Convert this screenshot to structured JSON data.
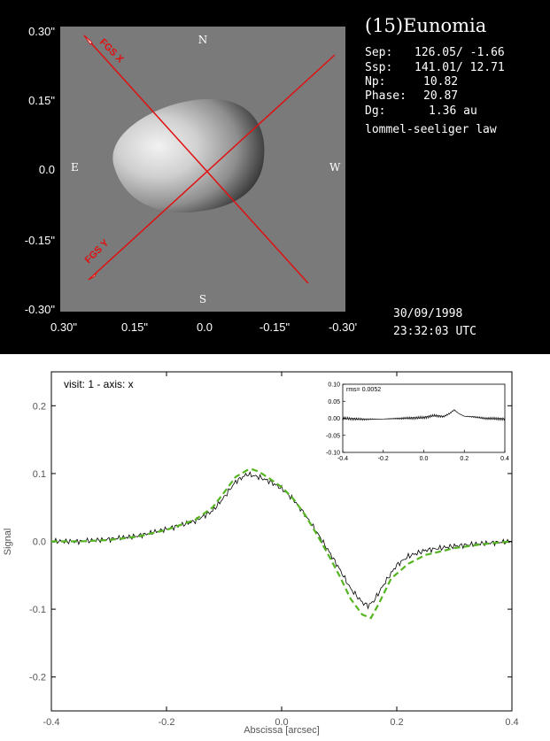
{
  "image_panel": {
    "title": "(15)Eunomia",
    "info_lines": [
      {
        "label": "Sep:",
        "value": "126.05/ -1.66"
      },
      {
        "label": "Ssp:",
        "value": "141.01/ 12.71"
      },
      {
        "label": "Np:",
        "value": "10.82"
      },
      {
        "label": "Phase:",
        "value": "20.87"
      },
      {
        "label": "Dg:",
        "value": "1.36 au"
      }
    ],
    "law": "lommel-seeliger law",
    "date": "30/09/1998",
    "time": "23:32:03 UTC",
    "compass": {
      "north": "N",
      "south": "S",
      "east": "E",
      "west": "W"
    },
    "fgs_x_label": "FGS X",
    "fgs_y_label": "FGS Y",
    "y_ticks": [
      "0.30\"",
      "0.15\"",
      "0.0",
      "-0.15\"",
      "-0.30\""
    ],
    "x_ticks": [
      "0.30\"",
      "0.15\"",
      "0.0",
      "-0.15\"",
      "-0.30'"
    ],
    "colors": {
      "background": "#000000",
      "frame": "#7a7a7a",
      "lines": "#e01010"
    }
  },
  "chart_data": {
    "type": "line",
    "annotation": "visit: 1 - axis: x",
    "xlabel": "Abscissa [arcsec]",
    "ylabel": "Signal",
    "xlim": [
      -0.4,
      0.4
    ],
    "ylim": [
      -0.25,
      0.25
    ],
    "xticks": [
      -0.4,
      -0.2,
      0.0,
      0.2,
      0.4
    ],
    "yticks": [
      -0.2,
      -0.1,
      0.0,
      0.1,
      0.2
    ],
    "xtick_labels": [
      "-0.4",
      "-0.2",
      "0.0",
      "0.2",
      "0.4"
    ],
    "ytick_labels": [
      "-0.2",
      "-0.1",
      "0.0",
      "0.1",
      "0.2"
    ],
    "series": [
      {
        "color": "#000000",
        "style": "solid",
        "x": [
          -0.4,
          -0.35,
          -0.3,
          -0.25,
          -0.2,
          -0.15,
          -0.12,
          -0.1,
          -0.08,
          -0.06,
          -0.04,
          -0.02,
          0.0,
          0.02,
          0.04,
          0.06,
          0.08,
          0.1,
          0.12,
          0.14,
          0.15,
          0.16,
          0.18,
          0.2,
          0.22,
          0.25,
          0.3,
          0.35,
          0.4
        ],
        "y": [
          0.0,
          0.0,
          0.003,
          0.008,
          0.018,
          0.03,
          0.045,
          0.065,
          0.088,
          0.099,
          0.095,
          0.088,
          0.078,
          0.062,
          0.04,
          0.015,
          -0.012,
          -0.04,
          -0.07,
          -0.09,
          -0.095,
          -0.088,
          -0.06,
          -0.035,
          -0.022,
          -0.013,
          -0.007,
          -0.003,
          0.0
        ]
      },
      {
        "color": "#55b520",
        "style": "dashed",
        "x": [
          -0.4,
          -0.35,
          -0.3,
          -0.25,
          -0.2,
          -0.15,
          -0.12,
          -0.1,
          -0.08,
          -0.06,
          -0.05,
          -0.04,
          -0.02,
          0.0,
          0.02,
          0.04,
          0.06,
          0.08,
          0.1,
          0.12,
          0.14,
          0.155,
          0.17,
          0.19,
          0.22,
          0.25,
          0.3,
          0.35,
          0.4
        ],
        "y": [
          0.0,
          0.0,
          0.002,
          0.007,
          0.017,
          0.032,
          0.05,
          0.072,
          0.095,
          0.105,
          0.106,
          0.103,
          0.092,
          0.08,
          0.063,
          0.04,
          0.012,
          -0.018,
          -0.05,
          -0.085,
          -0.108,
          -0.113,
          -0.09,
          -0.055,
          -0.033,
          -0.02,
          -0.01,
          -0.004,
          0.0
        ]
      }
    ],
    "inset": {
      "label": "rms= 0.0052",
      "xlim": [
        -0.4,
        0.4
      ],
      "ylim": [
        -0.1,
        0.1
      ],
      "xticks": [
        -0.4,
        -0.2,
        0.0,
        0.2,
        0.4
      ],
      "yticks": [
        -0.1,
        -0.05,
        0.0,
        0.05,
        0.1
      ],
      "xtick_labels": [
        "-0.4",
        "-0.2",
        "0.0",
        "0.2",
        "0.4"
      ],
      "ytick_labels": [
        "-0.10",
        "-0.05",
        "0.00",
        "0.05",
        "0.10"
      ],
      "x": [
        -0.4,
        -0.3,
        -0.2,
        -0.1,
        0.0,
        0.05,
        0.1,
        0.13,
        0.15,
        0.17,
        0.2,
        0.25,
        0.3,
        0.4
      ],
      "y": [
        0.0,
        -0.003,
        -0.002,
        0.0,
        0.002,
        0.008,
        0.005,
        0.015,
        0.025,
        0.015,
        0.006,
        0.004,
        0.0,
        -0.002
      ]
    }
  }
}
